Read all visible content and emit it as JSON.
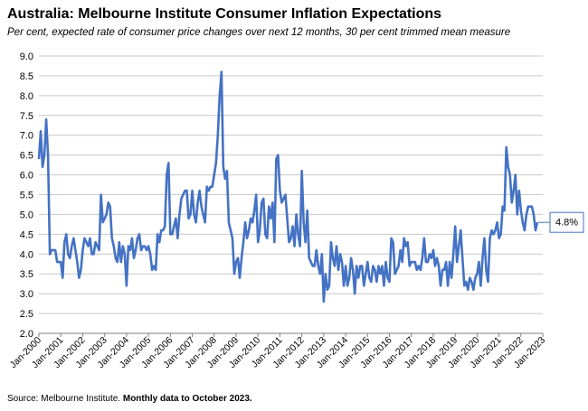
{
  "header": {
    "title": "Australia: Melbourne Institute Consumer Inflation Expectations",
    "subtitle": "Per cent, expected rate of consumer price changes over next 12 months, 30 per cent trimmed mean measure"
  },
  "footer": {
    "source_label": "Source: Melbourne Institute.",
    "source_note": "Monthly data to October 2023."
  },
  "colors": {
    "line": "#4472C4",
    "grid": "#C8C8C8",
    "axis": "#7F7F7F",
    "callout_border": "#4472C4"
  },
  "chart_data": {
    "type": "line",
    "title": "Australia: Melbourne Institute Consumer Inflation Expectations",
    "xlabel": "",
    "ylabel": "",
    "ylim": [
      2.0,
      9.0
    ],
    "yticks": [
      "2.0",
      "2.5",
      "3.0",
      "3.5",
      "4.0",
      "4.5",
      "5.0",
      "5.5",
      "6.0",
      "6.5",
      "7.0",
      "7.5",
      "8.0",
      "8.5",
      "9.0"
    ],
    "xticks": [
      "Jan-2000",
      "Jan-2001",
      "Jan-2002",
      "Jan-2003",
      "Jan-2004",
      "Jan-2005",
      "Jan-2006",
      "Jan-2007",
      "Jan-2008",
      "Jan-2009",
      "Jan-2010",
      "Jan-2011",
      "Jan-2012",
      "Jan-2013",
      "Jan-2014",
      "Jan-2015",
      "Jan-2016",
      "Jan-2017",
      "Jan-2018",
      "Jan-2019",
      "Jan-2020",
      "Jan-2021",
      "Jan-2022",
      "Jan-2023"
    ],
    "grid": true,
    "legend": "none",
    "annotation": "4.8%",
    "start_month": "Jan-2000",
    "series": [
      {
        "values": [
          6.4,
          7.1,
          6.2,
          6.5,
          7.4,
          6.5,
          4.0,
          4.1,
          4.1,
          4.1,
          3.8,
          3.8,
          3.8,
          3.4,
          4.3,
          4.5,
          4.0,
          3.9,
          4.2,
          4.4,
          4.1,
          3.8,
          3.4,
          3.6,
          4.1,
          4.4,
          4.3,
          4.2,
          4.4,
          4.0,
          4.0,
          4.3,
          4.2,
          4.1,
          5.5,
          4.8,
          4.9,
          5.0,
          5.3,
          5.2,
          4.4,
          4.2,
          3.9,
          3.8,
          4.3,
          3.8,
          4.2,
          4.0,
          3.2,
          4.2,
          4.1,
          4.4,
          3.9,
          4.1,
          4.4,
          4.5,
          4.1,
          4.2,
          4.2,
          4.1,
          4.2,
          4.0,
          3.6,
          3.7,
          3.6,
          4.5,
          4.3,
          4.6,
          4.6,
          4.7,
          6.0,
          6.3,
          4.5,
          4.5,
          4.7,
          4.9,
          4.4,
          5.0,
          5.4,
          5.5,
          5.6,
          5.6,
          4.9,
          5.0,
          5.6,
          5.0,
          4.8,
          5.3,
          5.6,
          5.2,
          5.0,
          4.8,
          5.7,
          5.6,
          5.7,
          5.7,
          6.0,
          6.3,
          7.0,
          8.0,
          8.6,
          6.2,
          5.9,
          6.1,
          4.8,
          4.6,
          4.4,
          3.5,
          3.8,
          3.9,
          3.4,
          3.9,
          4.3,
          4.8,
          4.4,
          4.6,
          4.9,
          4.8,
          5.1,
          5.5,
          4.3,
          4.6,
          5.3,
          5.4,
          4.5,
          4.4,
          5.2,
          4.9,
          5.3,
          4.3,
          6.4,
          6.5,
          5.6,
          5.3,
          5.4,
          5.5,
          4.9,
          4.3,
          4.4,
          4.7,
          4.2,
          5.0,
          4.5,
          4.2,
          6.1,
          4.8,
          4.3,
          5.1,
          3.9,
          3.8,
          3.7,
          3.7,
          4.1,
          3.7,
          3.5,
          4.0,
          2.8,
          3.5,
          3.1,
          3.2,
          4.3,
          3.9,
          3.7,
          4.2,
          3.6,
          4.0,
          3.8,
          3.2,
          3.7,
          3.2,
          3.4,
          3.9,
          3.6,
          3.0,
          3.7,
          3.4,
          3.7,
          3.7,
          3.2,
          3.5,
          3.8,
          3.4,
          3.3,
          3.7,
          3.6,
          3.3,
          3.7,
          3.5,
          3.7,
          3.2,
          3.8,
          3.4,
          3.3,
          4.4,
          4.3,
          3.5,
          3.6,
          3.7,
          4.1,
          3.8,
          4.4,
          4.2,
          4.3,
          3.7,
          3.8,
          3.8,
          3.8,
          3.6,
          3.7,
          3.6,
          3.9,
          4.4,
          3.8,
          3.8,
          4.0,
          3.9,
          4.1,
          3.7,
          3.9,
          3.7,
          3.2,
          3.6,
          3.6,
          3.8,
          3.2,
          3.8,
          3.4,
          4.0,
          4.7,
          3.8,
          4.2,
          4.6,
          3.9,
          3.2,
          3.3,
          3.1,
          3.4,
          3.3,
          3.1,
          3.4,
          3.5,
          3.8,
          3.2,
          3.9,
          4.4,
          3.6,
          3.3,
          4.4,
          4.6,
          4.5,
          4.6,
          4.8,
          4.4,
          4.5,
          5.2,
          5.1,
          6.7,
          6.2,
          6.0,
          5.3,
          5.6,
          6.0,
          5.0,
          5.6,
          5.1,
          4.8,
          4.6,
          5.0,
          5.2,
          5.2,
          5.2,
          5.0,
          4.6,
          4.8
        ]
      }
    ]
  }
}
